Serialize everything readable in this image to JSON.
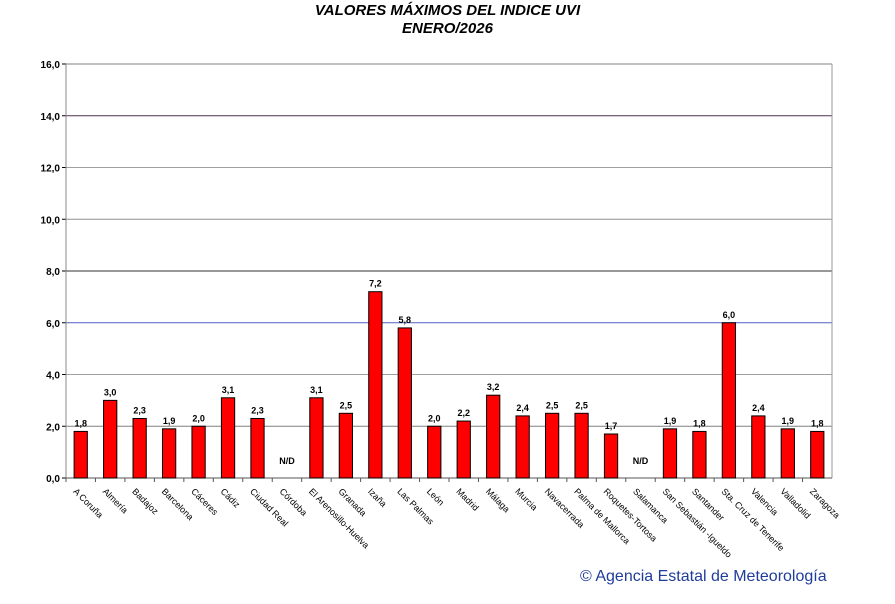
{
  "chart_data": {
    "type": "bar",
    "title": "VALORES MÁXIMOS DEL INDICE UVI",
    "subtitle": "ENERO/2026",
    "xlabel": "",
    "ylabel": "",
    "ylim": [
      0,
      16
    ],
    "yticks": [
      "0,0",
      "2,0",
      "4,0",
      "6,0",
      "8,0",
      "10,0",
      "12,0",
      "14,0",
      "16,0"
    ],
    "grid": true,
    "bar_color": "#ff0000",
    "categories": [
      "A Coruña",
      "Almería",
      "Badajoz",
      "Barcelona",
      "Cáceres",
      "Cádiz",
      "Ciudad Real",
      "Córdoba",
      "El Arenosillo-Huelva",
      "Granada",
      "Izaña",
      "Las Palmas",
      "León",
      "Madrid",
      "Málaga",
      "Murcia",
      "Navacerrada",
      "Palma de Mallorca",
      "Roquetes-Tortosa",
      "Salamanca",
      "San Sebastián -Igueldo",
      "Santander",
      "Sta. Cruz de Tenerife",
      "Valencia",
      "Valladolid",
      "Zaragoza"
    ],
    "values": [
      1.8,
      3.0,
      2.3,
      1.9,
      2.0,
      3.1,
      2.3,
      null,
      3.1,
      2.5,
      7.2,
      5.8,
      2.0,
      2.2,
      3.2,
      2.4,
      2.5,
      2.5,
      1.7,
      null,
      1.9,
      1.8,
      6.0,
      2.4,
      1.9,
      1.8
    ],
    "labels": [
      "1,8",
      "3,0",
      "2,3",
      "1,9",
      "2,0",
      "3,1",
      "2,3",
      "N/D",
      "3,1",
      "2,5",
      "7,2",
      "5,8",
      "2,0",
      "2,2",
      "3,2",
      "2,4",
      "2,5",
      "2,5",
      "1,7",
      "N/D",
      "1,9",
      "1,8",
      "6,0",
      "2,4",
      "1,9",
      "1,8"
    ]
  },
  "credit": "© Agencia Estatal de Meteorología"
}
